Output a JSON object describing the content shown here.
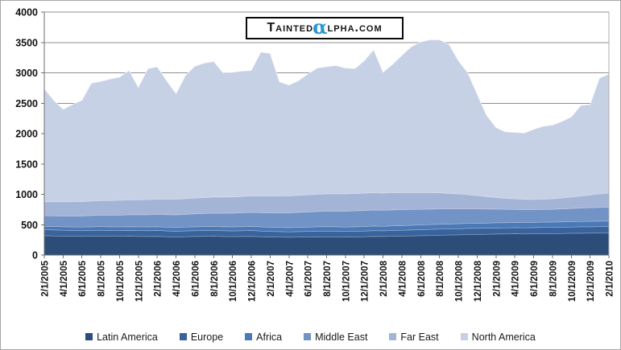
{
  "watermark": {
    "prefix": "Tainted",
    "alpha": "α",
    "suffix": "lpha.com",
    "alpha_color": "#2b96d4"
  },
  "chart_data": {
    "type": "area",
    "stacked": true,
    "title": "",
    "xlabel": "",
    "ylabel": "",
    "grid": true,
    "legend_position": "bottom",
    "ylim": [
      0,
      4000
    ],
    "y_ticks": [
      0,
      500,
      1000,
      1500,
      2000,
      2500,
      3000,
      3500,
      4000
    ],
    "x_tick_every": 2,
    "x": [
      "2/1/2005",
      "3/1/2005",
      "4/1/2005",
      "5/1/2005",
      "6/1/2005",
      "7/1/2005",
      "8/1/2005",
      "9/1/2005",
      "10/1/2005",
      "11/1/2005",
      "12/1/2005",
      "1/1/2006",
      "2/1/2006",
      "3/1/2006",
      "4/1/2006",
      "5/1/2006",
      "6/1/2006",
      "7/1/2006",
      "8/1/2006",
      "9/1/2006",
      "10/1/2006",
      "11/1/2006",
      "12/1/2006",
      "1/1/2007",
      "2/1/2007",
      "3/1/2007",
      "4/1/2007",
      "5/1/2007",
      "6/1/2007",
      "7/1/2007",
      "8/1/2007",
      "9/1/2007",
      "10/1/2007",
      "11/1/2007",
      "12/1/2007",
      "1/1/2008",
      "2/1/2008",
      "3/1/2008",
      "4/1/2008",
      "5/1/2008",
      "6/1/2008",
      "7/1/2008",
      "8/1/2008",
      "9/1/2008",
      "10/1/2008",
      "11/1/2008",
      "12/1/2008",
      "1/1/2009",
      "2/1/2009",
      "3/1/2009",
      "4/1/2009",
      "5/1/2009",
      "6/1/2009",
      "7/1/2009",
      "8/1/2009",
      "9/1/2009",
      "10/1/2009",
      "11/1/2009",
      "12/1/2009",
      "1/1/2010",
      "2/1/2010"
    ],
    "series": [
      {
        "name": "Latin America",
        "color": "#2c4c79",
        "values": [
          320,
          318,
          315,
          312,
          310,
          312,
          315,
          312,
          310,
          312,
          310,
          308,
          310,
          305,
          300,
          305,
          308,
          310,
          312,
          308,
          306,
          308,
          310,
          305,
          300,
          298,
          295,
          298,
          300,
          302,
          305,
          303,
          300,
          302,
          305,
          310,
          308,
          312,
          315,
          318,
          320,
          325,
          330,
          332,
          335,
          338,
          340,
          345,
          348,
          350,
          352,
          350,
          352,
          355,
          355,
          358,
          360,
          362,
          363,
          364,
          365
        ]
      },
      {
        "name": "Europe",
        "color": "#38639c",
        "values": [
          98,
          97,
          96,
          95,
          95,
          96,
          97,
          96,
          95,
          96,
          95,
          95,
          96,
          94,
          92,
          94,
          95,
          96,
          96,
          94,
          93,
          94,
          95,
          93,
          91,
          90,
          89,
          90,
          91,
          92,
          93,
          92,
          91,
          92,
          93,
          94,
          93,
          95,
          96,
          97,
          98,
          99,
          100,
          100,
          101,
          102,
          102,
          100,
          100,
          100,
          101,
          100,
          101,
          102,
          102,
          103,
          104,
          105,
          105,
          106,
          106
        ]
      },
      {
        "name": "Africa",
        "color": "#4b79b6",
        "values": [
          57,
          57,
          58,
          58,
          59,
          59,
          60,
          60,
          61,
          61,
          62,
          62,
          63,
          63,
          64,
          64,
          65,
          65,
          66,
          66,
          67,
          67,
          68,
          68,
          69,
          69,
          70,
          70,
          71,
          72,
          72,
          73,
          73,
          74,
          74,
          75,
          75,
          76,
          77,
          78,
          79,
          80,
          80,
          81,
          82,
          83,
          83,
          84,
          84,
          85,
          85,
          86,
          86,
          87,
          87,
          88,
          88,
          89,
          89,
          90,
          90
        ]
      },
      {
        "name": "Middle East",
        "color": "#7293c5",
        "values": [
          175,
          176,
          178,
          180,
          182,
          185,
          188,
          190,
          193,
          196,
          198,
          200,
          203,
          205,
          208,
          210,
          213,
          216,
          219,
          222,
          225,
          228,
          231,
          234,
          237,
          240,
          243,
          246,
          249,
          252,
          255,
          258,
          260,
          262,
          263,
          264,
          264,
          263,
          262,
          260,
          258,
          255,
          252,
          248,
          244,
          240,
          236,
          230,
          225,
          220,
          216,
          213,
          211,
          210,
          211,
          213,
          216,
          220,
          224,
          227,
          230
        ]
      },
      {
        "name": "Far East",
        "color": "#a4b4d7",
        "values": [
          230,
          231,
          232,
          234,
          236,
          238,
          240,
          242,
          244,
          246,
          248,
          250,
          252,
          254,
          256,
          258,
          260,
          262,
          264,
          266,
          268,
          270,
          272,
          274,
          276,
          278,
          280,
          281,
          282,
          283,
          284,
          285,
          285,
          285,
          285,
          285,
          284,
          282,
          280,
          277,
          274,
          270,
          264,
          256,
          246,
          234,
          220,
          205,
          192,
          182,
          175,
          170,
          168,
          170,
          174,
          180,
          188,
          198,
          210,
          222,
          232
        ]
      },
      {
        "name": "North America",
        "color": "#c7d1e5",
        "values": [
          1860,
          1671,
          1521,
          1601,
          1668,
          1940,
          1960,
          2000,
          2027,
          2129,
          1847,
          2155,
          2176,
          1949,
          1740,
          2029,
          2169,
          2211,
          2233,
          2044,
          2051,
          2063,
          2064,
          2366,
          2347,
          1875,
          1823,
          1885,
          1987,
          2079,
          2091,
          2109,
          2071,
          2055,
          2180,
          2352,
          1986,
          2112,
          2260,
          2400,
          2481,
          2516,
          2519,
          2453,
          2192,
          2003,
          1669,
          1336,
          1151,
          1093,
          1091,
          1091,
          1152,
          1196,
          1211,
          1258,
          1319,
          1491,
          1489,
          1906,
          1957
        ]
      }
    ]
  }
}
